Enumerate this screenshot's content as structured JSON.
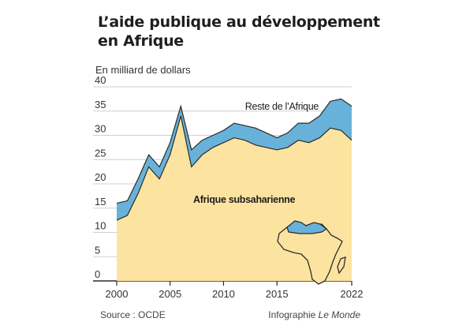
{
  "header": {
    "title_line1": "L’aide publique au développement",
    "title_line2": "en Afrique",
    "unit": "En milliard de dollars"
  },
  "footer": {
    "source": "Source : OCDE",
    "credit_prefix": "Infographie ",
    "credit_name": "Le Monde"
  },
  "colors": {
    "subsaharan": "#fde3a0",
    "rest": "#68b2d9",
    "line": "#2b2b2b",
    "grid": "#cfcfcf"
  },
  "icons": {
    "map": "africa-map-icon"
  },
  "chart_data": {
    "type": "area",
    "stacked": true,
    "title": "L’aide publique au développement en Afrique",
    "ylabel": "En milliard de dollars",
    "ylim": [
      0,
      40
    ],
    "xlim": [
      2000,
      2022
    ],
    "yticks": [
      0,
      5,
      10,
      15,
      20,
      25,
      30,
      35,
      40
    ],
    "xticks": [
      "2000",
      "2005",
      "2010",
      "2015",
      "2022"
    ],
    "grid": true,
    "x": [
      2000,
      2001,
      2002,
      2003,
      2004,
      2005,
      2006,
      2007,
      2008,
      2009,
      2010,
      2011,
      2012,
      2013,
      2014,
      2015,
      2016,
      2017,
      2018,
      2019,
      2020,
      2021,
      2022
    ],
    "series": [
      {
        "name": "Afrique subsaharienne",
        "values": [
          12.5,
          13.5,
          18,
          23.5,
          21,
          26,
          34,
          23.5,
          26,
          27.5,
          28.5,
          29.5,
          29,
          28,
          27.5,
          27,
          27.5,
          29,
          28.5,
          29.5,
          31.5,
          31,
          29
        ]
      },
      {
        "name": "Reste de l’Afrique",
        "values": [
          3.5,
          3,
          3,
          2.5,
          2.5,
          2.5,
          2,
          3.5,
          3,
          2.5,
          2.5,
          3,
          3,
          3.5,
          3,
          2.5,
          3,
          3.5,
          4,
          4.5,
          5.5,
          6.5,
          7
        ]
      }
    ],
    "annotations": [
      "Reste de l’Afrique",
      "Afrique subsaharienne"
    ]
  }
}
